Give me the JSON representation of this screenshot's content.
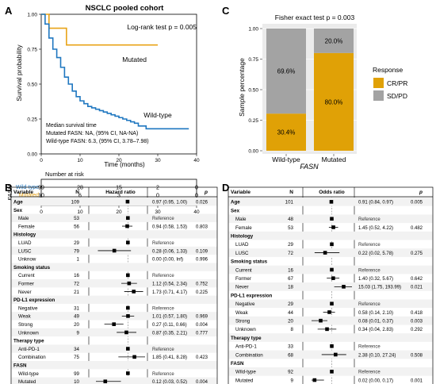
{
  "panel_letters": {
    "A": "A",
    "B": "B",
    "C": "C",
    "D": "D"
  },
  "colors": {
    "wild_type": "#1f77c0",
    "mutated": "#e8a317",
    "cr_pr": "#e0a106",
    "sd_pd": "#a3a3a3"
  },
  "chart_data": [
    {
      "id": "A",
      "type": "line",
      "title": "NSCLC pooled cohort",
      "xlabel": "Time (months)",
      "ylabel": "Survival probability",
      "xlim": [
        0,
        40
      ],
      "ylim": [
        0,
        1
      ],
      "x_ticks": [
        "0",
        "10",
        "20",
        "30",
        "40"
      ],
      "y_ticks": [
        "0.00",
        "0.25",
        "0.50",
        "0.75",
        "1.00"
      ],
      "pvalue_text": "Log-rank test p = 0.005",
      "series": [
        {
          "name": "Mutated",
          "x": [
            0,
            1,
            2,
            3,
            4.5,
            6.5,
            30
          ],
          "y": [
            1.0,
            1.0,
            0.9,
            0.9,
            0.9,
            0.78,
            0.78
          ]
        },
        {
          "name": "Wild-type",
          "x": [
            0,
            1,
            2,
            3,
            4,
            5,
            6,
            7,
            8,
            9,
            10,
            11,
            12,
            13,
            14,
            15,
            16,
            17,
            18,
            19,
            20,
            21,
            22,
            23,
            24,
            25,
            27,
            36,
            38
          ],
          "y": [
            1.0,
            0.93,
            0.83,
            0.75,
            0.69,
            0.62,
            0.55,
            0.5,
            0.45,
            0.41,
            0.38,
            0.36,
            0.34,
            0.33,
            0.32,
            0.31,
            0.3,
            0.29,
            0.28,
            0.27,
            0.26,
            0.25,
            0.24,
            0.23,
            0.22,
            0.2,
            0.18,
            0.18,
            0.18
          ]
        }
      ],
      "median_text": [
        "Median survival time",
        "Mutated FASN: NA, (95% CI, NA-NA)",
        "Wild-type FASN: 6.3, (95% CI, 3.78–7.98)"
      ],
      "risk_table": {
        "title": "Number at risk",
        "gene": "FASN",
        "rows": [
          {
            "name": "Wild-type",
            "values": [
              "99",
              "28",
              "15",
              "2",
              "0"
            ]
          },
          {
            "name": "Mutated",
            "values": [
              "10",
              "6",
              "3",
              "0",
              "0"
            ]
          }
        ],
        "x_ticks": [
          "0",
          "10",
          "20",
          "30",
          "40"
        ]
      }
    },
    {
      "id": "C",
      "type": "bar",
      "title": "Fisher exact test p = 0.003",
      "categories": [
        "Wild-type",
        "Mutated"
      ],
      "xlabel": "FASN",
      "ylabel": "Sample percentage",
      "ylim": [
        0,
        1
      ],
      "y_ticks": [
        "0.00",
        "0.25",
        "0.50",
        "0.75",
        "1.00"
      ],
      "series": [
        {
          "name": "CR/PR",
          "values": [
            0.304,
            0.8
          ],
          "labels": [
            "30.4%",
            "80.0%"
          ]
        },
        {
          "name": "SD/PD",
          "values": [
            0.696,
            0.2
          ],
          "labels": [
            "69.6%",
            "20.0%"
          ]
        }
      ],
      "legend": {
        "title": "Response",
        "position": "right"
      }
    },
    {
      "id": "B",
      "type": "table",
      "headers": [
        "Variable",
        "N",
        "Hazard ratio",
        "",
        "p"
      ],
      "scale": "log",
      "x_tick_values": [
        0.05,
        0.1,
        0.2,
        0.5,
        1,
        2,
        5
      ],
      "x_ticks": [
        "0.05",
        "0.1",
        "0.2",
        "0.5",
        "1",
        "2",
        "5"
      ],
      "rows": [
        {
          "var": "Age",
          "bold": true,
          "n": "109",
          "est": 0.97,
          "lo": 0.95,
          "hi": 1.0,
          "ci": "0.97 (0.95, 1.00)",
          "p": "0.026"
        },
        {
          "var": "Sex",
          "bold": true,
          "n": "",
          "ci": "",
          "p": ""
        },
        {
          "var": "Male",
          "n": "53",
          "est": 1,
          "ci": "Reference",
          "p": ""
        },
        {
          "var": "Female",
          "n": "56",
          "est": 0.94,
          "lo": 0.58,
          "hi": 1.53,
          "ci": "0.94 (0.58, 1.53)",
          "p": "0.803"
        },
        {
          "var": "Histology",
          "bold": true,
          "n": "",
          "ci": "",
          "p": ""
        },
        {
          "var": "LUAD",
          "n": "29",
          "est": 1,
          "ci": "Reference",
          "p": ""
        },
        {
          "var": "LUSC",
          "n": "79",
          "est": 0.28,
          "lo": 0.06,
          "hi": 1.33,
          "ci": "0.28 (0.06, 1.33)",
          "p": "0.109"
        },
        {
          "var": "Unknow",
          "n": "1",
          "ci": "0.00 (0.00, Inf)",
          "p": "0.996"
        },
        {
          "var": "Smoking status",
          "bold": true,
          "n": "",
          "ci": "",
          "p": ""
        },
        {
          "var": "Current",
          "n": "16",
          "est": 1,
          "ci": "Reference",
          "p": ""
        },
        {
          "var": "Former",
          "n": "72",
          "est": 1.12,
          "lo": 0.54,
          "hi": 2.34,
          "ci": "1.12 (0.54, 2.34)",
          "p": "0.752"
        },
        {
          "var": "Never",
          "n": "21",
          "est": 1.73,
          "lo": 0.71,
          "hi": 4.17,
          "ci": "1.73 (0.71, 4.17)",
          "p": "0.225"
        },
        {
          "var": "PD-L1 expression",
          "bold": true,
          "n": "",
          "ci": "",
          "p": ""
        },
        {
          "var": "Negative",
          "n": "31",
          "est": 1,
          "ci": "Reference",
          "p": ""
        },
        {
          "var": "Weak",
          "n": "49",
          "est": 1.01,
          "lo": 0.57,
          "hi": 1.8,
          "ci": "1.01 (0.57, 1.80)",
          "p": "0.969"
        },
        {
          "var": "Strong",
          "n": "20",
          "est": 0.27,
          "lo": 0.11,
          "hi": 0.66,
          "ci": "0.27 (0.11, 0.66)",
          "p": "0.004"
        },
        {
          "var": "Unknown",
          "n": "9",
          "est": 0.87,
          "lo": 0.35,
          "hi": 2.21,
          "ci": "0.87 (0.35, 2.21)",
          "p": "0.777"
        },
        {
          "var": "Therapy type",
          "bold": true,
          "n": "",
          "ci": "",
          "p": ""
        },
        {
          "var": "Anti-PD-1",
          "n": "34",
          "est": 1,
          "ci": "Reference",
          "p": ""
        },
        {
          "var": "Combination",
          "n": "75",
          "est": 1.85,
          "lo": 0.41,
          "hi": 8.28,
          "ci": "1.85 (0.41, 8.28)",
          "p": "0.423"
        },
        {
          "var": "FASN",
          "bold": true,
          "n": "",
          "ci": "",
          "p": ""
        },
        {
          "var": "Wild-type",
          "n": "99",
          "est": 1,
          "ci": "Reference",
          "p": ""
        },
        {
          "var": "Mutated",
          "n": "10",
          "est": 0.12,
          "lo": 0.03,
          "hi": 0.52,
          "ci": "0.12 (0.03, 0.52)",
          "p": "0.004"
        }
      ]
    },
    {
      "id": "D",
      "type": "table",
      "headers": [
        "Variable",
        "N",
        "Odds ratio",
        "",
        "p"
      ],
      "scale": "log",
      "x_tick_values": [
        0.01,
        0.1,
        1,
        10,
        100
      ],
      "x_ticks": [
        "0.01",
        "0.1",
        "1",
        "10",
        "100"
      ],
      "rows": [
        {
          "var": "Age",
          "bold": true,
          "n": "101",
          "est": 0.91,
          "lo": 0.84,
          "hi": 0.97,
          "ci": "0.91 (0.84, 0.97)",
          "p": "0.005"
        },
        {
          "var": "Sex",
          "bold": true,
          "n": "",
          "ci": "",
          "p": ""
        },
        {
          "var": "Male",
          "n": "48",
          "est": 1,
          "ci": "Reference",
          "p": ""
        },
        {
          "var": "Female",
          "n": "53",
          "est": 1.45,
          "lo": 0.52,
          "hi": 4.22,
          "ci": "1.45 (0.52, 4.22)",
          "p": "0.482"
        },
        {
          "var": "Histology",
          "bold": true,
          "n": "",
          "ci": "",
          "p": ""
        },
        {
          "var": "LUAD",
          "n": "29",
          "est": 1,
          "ci": "Reference",
          "p": ""
        },
        {
          "var": "LUSC",
          "n": "72",
          "est": 0.22,
          "lo": 0.02,
          "hi": 5.78,
          "ci": "0.22 (0.02, 5.78)",
          "p": "0.275"
        },
        {
          "var": "Smoking status",
          "bold": true,
          "n": "",
          "ci": "",
          "p": ""
        },
        {
          "var": "Current",
          "n": "16",
          "est": 1,
          "ci": "Reference",
          "p": ""
        },
        {
          "var": "Former",
          "n": "67",
          "est": 1.4,
          "lo": 0.32,
          "hi": 5.67,
          "ci": "1.40 (0.32, 5.67)",
          "p": "0.642"
        },
        {
          "var": "Never",
          "n": "18",
          "est": 15.03,
          "lo": 1.75,
          "hi": 193.99,
          "ci": "15.03 (1.75, 193.99)",
          "p": "0.021"
        },
        {
          "var": "PD-L1 expression",
          "bold": true,
          "n": "",
          "ci": "",
          "p": ""
        },
        {
          "var": "Negative",
          "n": "29",
          "est": 1,
          "ci": "Reference",
          "p": ""
        },
        {
          "var": "Weak",
          "n": "44",
          "est": 0.58,
          "lo": 0.14,
          "hi": 2.1,
          "ci": "0.58 (0.14, 2.10)",
          "p": "0.418"
        },
        {
          "var": "Strong",
          "n": "20",
          "est": 0.08,
          "lo": 0.01,
          "hi": 0.37,
          "ci": "0.08 (0.01, 0.37)",
          "p": "0.003"
        },
        {
          "var": "Unknown",
          "n": "8",
          "est": 0.34,
          "lo": 0.04,
          "hi": 2.83,
          "ci": "0.34 (0.04, 2.83)",
          "p": "0.292"
        },
        {
          "var": "Therapy type",
          "bold": true,
          "n": "",
          "ci": "",
          "p": ""
        },
        {
          "var": "Anti-PD-1",
          "n": "33",
          "est": 1,
          "ci": "Reference",
          "p": ""
        },
        {
          "var": "Combination",
          "n": "68",
          "est": 2.38,
          "lo": 0.1,
          "hi": 27.24,
          "ci": "2.38 (0.10, 27.24)",
          "p": "0.508"
        },
        {
          "var": "FASN",
          "bold": true,
          "n": "",
          "ci": "",
          "p": ""
        },
        {
          "var": "Wild-type",
          "n": "92",
          "est": 1,
          "ci": "Reference",
          "p": ""
        },
        {
          "var": "Mutated",
          "n": "9",
          "est": 0.02,
          "lo": 0.0,
          "hi": 0.17,
          "ci": "0.02 (0.00, 0.17)",
          "p": "0.001"
        }
      ]
    }
  ]
}
